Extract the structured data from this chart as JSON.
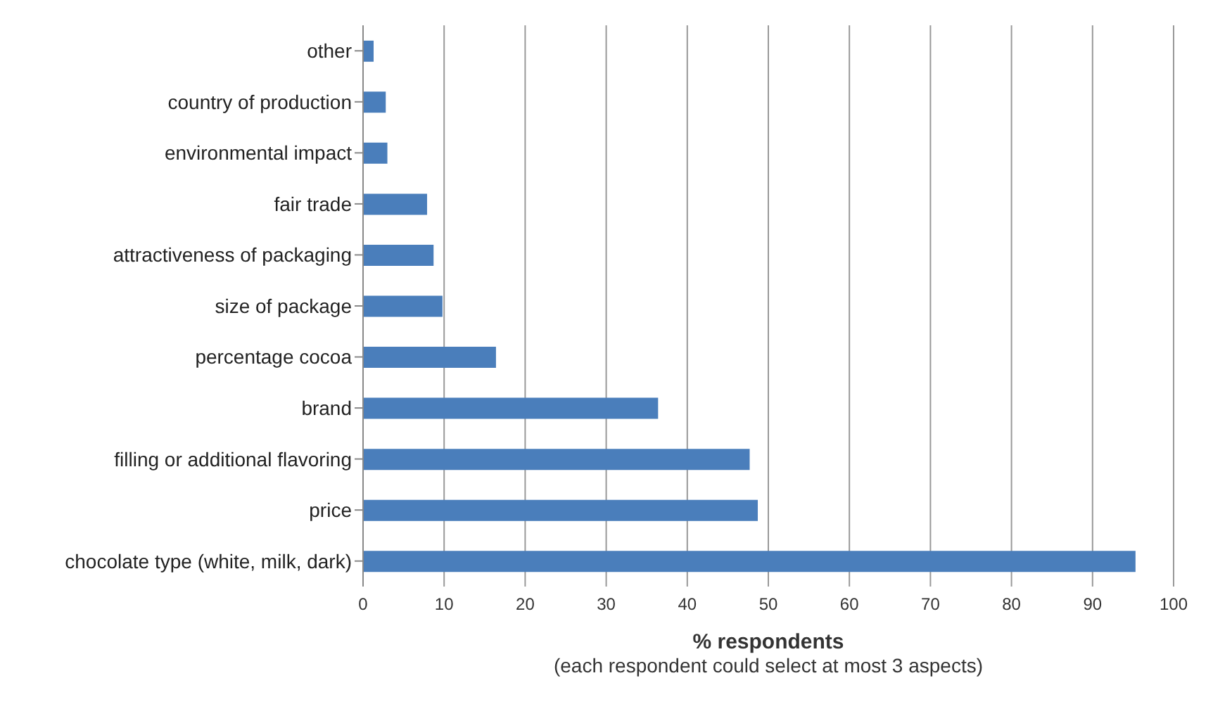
{
  "chart_data": {
    "type": "bar",
    "orientation": "horizontal",
    "categories": [
      "other",
      "country of production",
      "environmental impact",
      "fair trade",
      "attractiveness of packaging",
      "size of package",
      "percentage cocoa",
      "brand",
      "filling or additional flavoring",
      "price",
      "chocolate type (white, milk, dark)"
    ],
    "values": [
      1.3,
      2.8,
      3,
      7.9,
      8.7,
      9.8,
      16.4,
      36.4,
      47.7,
      48.7,
      95.3
    ],
    "color": "#4a7ebb",
    "xlim": [
      0,
      100
    ],
    "xticks": [
      0,
      10,
      20,
      30,
      40,
      50,
      60,
      70,
      80,
      90,
      100
    ],
    "xlabel": "% respondents",
    "annotations": [
      "(each respondent could select at most 3 aspects)"
    ],
    "grid": "x"
  }
}
